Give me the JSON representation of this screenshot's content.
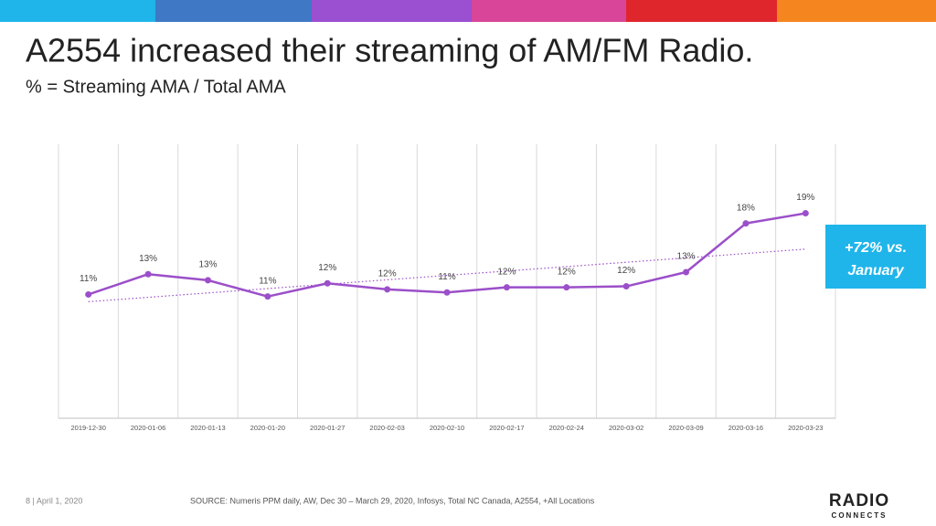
{
  "chart_data": {
    "type": "line",
    "title": "A2554 increased their streaming of AM/FM Radio.",
    "subtitle": "% = Streaming AMA / Total AMA",
    "categories": [
      "2019-12-30",
      "2020-01-06",
      "2020-01-13",
      "2020-01-20",
      "2020-01-27",
      "2020-02-03",
      "2020-02-10",
      "2020-02-17",
      "2020-02-24",
      "2020-03-02",
      "2020-03-09",
      "2020-03-16",
      "2020-03-23"
    ],
    "series": [
      {
        "name": "Streaming AMA / Total AMA",
        "color": "#9b4fc9",
        "values": [
          11.2,
          13.2,
          12.6,
          11.0,
          12.3,
          11.7,
          11.4,
          11.9,
          11.9,
          12.0,
          13.4,
          18.2,
          19.2
        ],
        "value_labels": [
          "11%",
          "13%",
          "13%",
          "11%",
          "12%",
          "12%",
          "11%",
          "12%",
          "12%",
          "12%",
          "13%",
          "18%",
          "19%"
        ]
      }
    ],
    "ylim": [
      -1,
      26
    ],
    "trendline": true,
    "annotation": {
      "line1": "+72% vs.",
      "line2": "January"
    },
    "footer": {
      "page": "8 | April 1, 2020",
      "source": "SOURCE: Numeris PPM daily, AW, Dec 30 – March 29, 2020,  Infosys, Total NC Canada, A2554, +All Locations"
    },
    "logo": {
      "name": "RADIO",
      "tagline": "CONNECTS"
    }
  }
}
